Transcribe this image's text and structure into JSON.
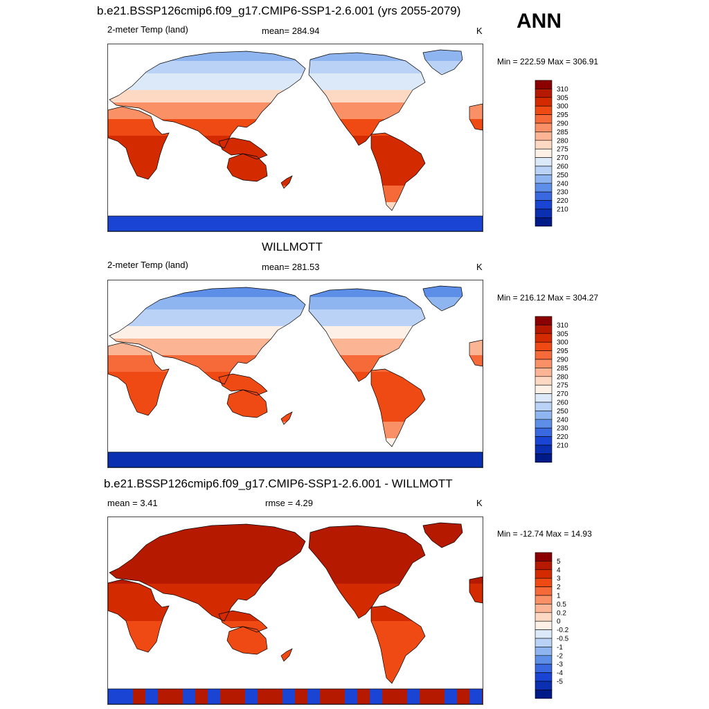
{
  "season": "ANN",
  "panels": [
    {
      "id": "model",
      "title": "b.e21.BSSP126cmip6.f09_g17.CMIP6-SSP1-2.6.001 (yrs 2055-2079)",
      "left_label": "2-meter Temp (land)",
      "center_label": "mean= 284.94",
      "units": "K",
      "minmax": "Min = 222.59 Max = 306.91",
      "colorbar": {
        "labels": [
          "310",
          "305",
          "300",
          "295",
          "290",
          "285",
          "280",
          "275",
          "270",
          "260",
          "250",
          "240",
          "230",
          "220",
          "210"
        ],
        "colors": [
          "#8b0000",
          "#b51a00",
          "#d42a00",
          "#ef4a14",
          "#f66a3a",
          "#f99066",
          "#fbb595",
          "#fdd8c2",
          "#fdf0e6",
          "#dce9f8",
          "#b9d2f5",
          "#8eb5ef",
          "#5d8ee8",
          "#3a68e0",
          "#1a45d4",
          "#0a2fb0",
          "#001a88"
        ]
      }
    },
    {
      "id": "obs",
      "title": "WILLMOTT",
      "left_label": "2-meter Temp (land)",
      "center_label": "mean= 281.53",
      "units": "K",
      "minmax": "Min = 216.12 Max = 304.27",
      "colorbar": {
        "labels": [
          "310",
          "305",
          "300",
          "295",
          "290",
          "285",
          "280",
          "275",
          "270",
          "260",
          "250",
          "240",
          "230",
          "220",
          "210"
        ],
        "colors": [
          "#8b0000",
          "#b51a00",
          "#d42a00",
          "#ef4a14",
          "#f66a3a",
          "#f99066",
          "#fbb595",
          "#fdd8c2",
          "#fdf0e6",
          "#dce9f8",
          "#b9d2f5",
          "#8eb5ef",
          "#5d8ee8",
          "#3a68e0",
          "#1a45d4",
          "#0a2fb0",
          "#001a88"
        ]
      }
    },
    {
      "id": "diff",
      "title": "b.e21.BSSP126cmip6.f09_g17.CMIP6-SSP1-2.6.001 - WILLMOTT",
      "left_label": "mean =   3.41",
      "center_label": "rmse =   4.29",
      "units": "K",
      "minmax": "Min = -12.74 Max =  14.93",
      "colorbar": {
        "labels": [
          "5",
          "4",
          "3",
          "2",
          "1",
          "0.5",
          "0.2",
          "0",
          "-0.2",
          "-0.5",
          "-1",
          "-2",
          "-3",
          "-4",
          "-5"
        ],
        "colors": [
          "#8b0000",
          "#b51a00",
          "#d42a00",
          "#ef4a14",
          "#f66a3a",
          "#f99066",
          "#fbb595",
          "#fdd8c2",
          "#fdf0e6",
          "#dce9f8",
          "#b9d2f5",
          "#8eb5ef",
          "#5d8ee8",
          "#3a68e0",
          "#1a45d4",
          "#0a2fb0",
          "#001a88"
        ]
      }
    }
  ]
}
